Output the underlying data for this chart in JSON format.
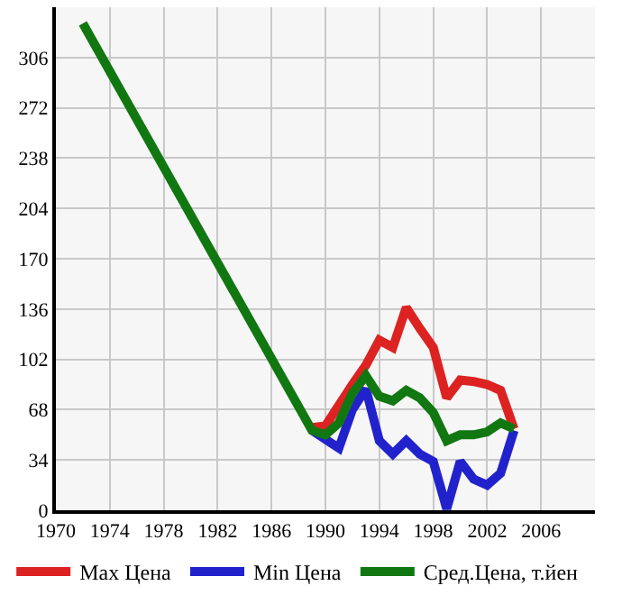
{
  "chart_data": {
    "type": "line",
    "series": [
      {
        "name": "Max Цена",
        "color": "#dd2222",
        "x": [
          1989,
          1990,
          1991,
          1992,
          1993,
          1994,
          1995,
          1996,
          1997,
          1998,
          1999,
          2000,
          2001,
          2002,
          2003,
          2004
        ],
        "values": [
          56,
          57,
          71,
          85,
          98,
          115,
          110,
          137,
          123,
          110,
          76,
          88,
          87,
          85,
          81,
          55
        ]
      },
      {
        "name": "Min Цена",
        "color": "#2222cc",
        "x": [
          1989,
          1990,
          1991,
          1992,
          1993,
          1994,
          1995,
          1996,
          1997,
          1998,
          1999,
          2000,
          2001,
          2002,
          2003,
          2004
        ],
        "values": [
          54,
          48,
          42,
          68,
          82,
          47,
          38,
          47,
          38,
          33,
          1,
          33,
          21,
          17,
          25,
          54
        ]
      },
      {
        "name": "Сред.Цена, т.йен",
        "color": "#117711",
        "x": [
          1972,
          1989,
          1990,
          1991,
          1992,
          1993,
          1994,
          1995,
          1996,
          1997,
          1998,
          1999,
          2000,
          2001,
          2002,
          2003,
          2004
        ],
        "values": [
          329,
          54,
          51,
          59,
          79,
          91,
          77,
          74,
          81,
          76,
          66,
          47,
          51,
          51,
          53,
          59,
          55
        ]
      }
    ],
    "xlim": [
      1970,
      2010
    ],
    "xticks": [
      1970,
      1974,
      1978,
      1982,
      1986,
      1990,
      1994,
      1998,
      2002,
      2006
    ],
    "ylim": [
      0,
      340
    ],
    "yticks": [
      0,
      34,
      68,
      102,
      136,
      170,
      204,
      238,
      272,
      306
    ],
    "grid": true,
    "legend": "bottom",
    "marker": "none",
    "line_style": "solid"
  }
}
